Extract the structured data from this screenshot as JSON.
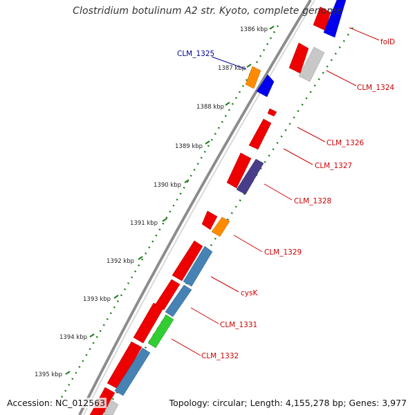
{
  "title": "Clostridium botulinum A2 str. Kyoto, complete genome",
  "footer": {
    "accession": "Accession: NC_012563",
    "summary": "Topology: circular; Length: 4,155,278 bp; Genes: 3,977"
  },
  "colors": {
    "forward_gene": "#ff0000",
    "highlight_gene": "#0000ff",
    "orange_gene": "#ff8c00",
    "gray_gene": "#c8c8c8",
    "steelblue_gene": "#4682b4",
    "green_gene": "#32cd32",
    "purple_gene": "#483d8b",
    "tick": "#006400",
    "backbone": "#808080",
    "label_red": "#cc0000",
    "label_blue": "#000099"
  },
  "ticks": [
    {
      "label": "1386 kbp"
    },
    {
      "label": "1387 kbp"
    },
    {
      "label": "1388 kbp"
    },
    {
      "label": "1389 kbp"
    },
    {
      "label": "1390 kbp"
    },
    {
      "label": "1391 kbp"
    },
    {
      "label": "1392 kbp"
    },
    {
      "label": "1393 kbp"
    },
    {
      "label": "1394 kbp"
    },
    {
      "label": "1395 kbp"
    }
  ],
  "gene_labels": [
    {
      "name": "folD",
      "color": "red"
    },
    {
      "name": "CLM_1324",
      "color": "red"
    },
    {
      "name": "CLM_1325",
      "color": "blue"
    },
    {
      "name": "CLM_1326",
      "color": "red"
    },
    {
      "name": "CLM_1327",
      "color": "red"
    },
    {
      "name": "CLM_1328",
      "color": "red"
    },
    {
      "name": "CLM_1329",
      "color": "red"
    },
    {
      "name": "cysK",
      "color": "red"
    },
    {
      "name": "CLM_1331",
      "color": "red"
    },
    {
      "name": "CLM_1332",
      "color": "red"
    }
  ]
}
